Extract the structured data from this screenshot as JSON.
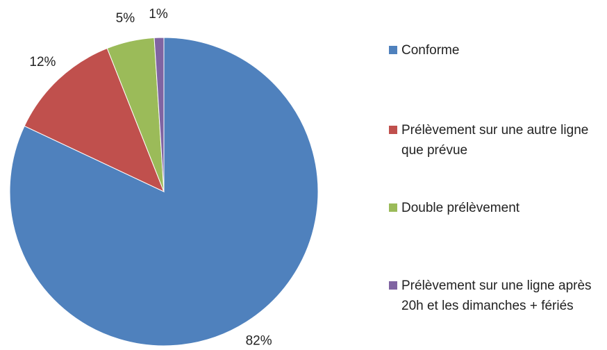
{
  "chart_data": {
    "type": "pie",
    "categories": [
      "Conforme",
      "Prélèvement sur une autre ligne que prévue",
      "Double prélèvement",
      "Prélèvement sur une ligne après 20h et les dimanches + fériés"
    ],
    "values": [
      82,
      12,
      5,
      1
    ],
    "value_labels": [
      "82%",
      "12%",
      "5%",
      "1%"
    ],
    "colors": [
      "#4f81bd",
      "#c0504d",
      "#9bbb59",
      "#8064a2"
    ],
    "legend": "right"
  }
}
